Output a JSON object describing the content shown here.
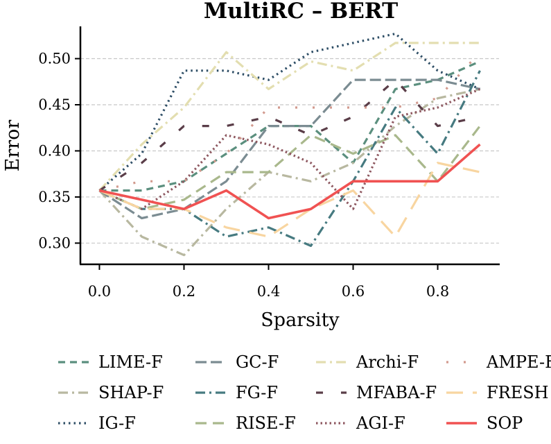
{
  "chart_data": {
    "type": "line",
    "title": "MultiRC – BERT",
    "xlabel": "Sparsity",
    "ylabel": "Error",
    "xlim": [
      -0.045,
      0.945
    ],
    "ylim": [
      0.277,
      0.535
    ],
    "xticks": [
      0.0,
      0.2,
      0.4,
      0.6,
      0.8
    ],
    "xtick_labels": [
      "0.0",
      "0.2",
      "0.4",
      "0.6",
      "0.8"
    ],
    "yticks": [
      0.3,
      0.35,
      0.4,
      0.45,
      0.5
    ],
    "ytick_labels": [
      "0.30",
      "0.35",
      "0.40",
      "0.45",
      "0.50"
    ],
    "grid": "y-dashed",
    "legend_position": "below",
    "x": [
      0.0,
      0.1,
      0.2,
      0.3,
      0.4,
      0.5,
      0.6,
      0.7,
      0.8,
      0.9
    ],
    "series": [
      {
        "name": "LIME-F",
        "color": "#5b8f7e",
        "dash": "10 7",
        "width": 3.2,
        "values": [
          0.357,
          0.357,
          0.367,
          0.397,
          0.427,
          0.427,
          0.387,
          0.467,
          0.477,
          0.497
        ]
      },
      {
        "name": "SHAP-F",
        "color": "#b8b8a0",
        "dash": "14 6 3 6",
        "width": 3.2,
        "values": [
          0.357,
          0.307,
          0.287,
          0.337,
          0.377,
          0.367,
          0.387,
          0.427,
          0.457,
          0.467
        ]
      },
      {
        "name": "IG-F",
        "color": "#2e4e66",
        "dash": "2.5 5",
        "width": 3.2,
        "values": [
          0.357,
          0.397,
          0.487,
          0.487,
          0.477,
          0.507,
          0.517,
          0.527,
          0.487,
          0.467
        ]
      },
      {
        "name": "GC-F",
        "color": "#7b8c92",
        "dash": "16 6",
        "width": 3.2,
        "values": [
          0.357,
          0.327,
          0.337,
          0.367,
          0.427,
          0.427,
          0.477,
          0.477,
          0.477,
          0.467
        ]
      },
      {
        "name": "FG-F",
        "color": "#467a80",
        "dash": "14 6 3 6",
        "width": 3.2,
        "values": [
          0.357,
          0.337,
          0.337,
          0.307,
          0.317,
          0.297,
          0.367,
          0.447,
          0.397,
          0.487
        ]
      },
      {
        "name": "RISE-F",
        "color": "#a9b88c",
        "dash": "16 9",
        "width": 3.2,
        "values": [
          0.357,
          0.337,
          0.347,
          0.377,
          0.377,
          0.417,
          0.397,
          0.417,
          0.367,
          0.427
        ]
      },
      {
        "name": "Archi-F",
        "color": "#e3deb0",
        "dash": "14 6 3 6",
        "width": 3.2,
        "values": [
          0.357,
          0.407,
          0.447,
          0.507,
          0.467,
          0.497,
          0.487,
          0.517,
          0.517,
          0.517
        ]
      },
      {
        "name": "MFABA-F",
        "color": "#5a3d48",
        "dash": "10 26",
        "width": 3.2,
        "values": [
          0.357,
          0.387,
          0.427,
          0.427,
          0.437,
          0.417,
          0.437,
          0.477,
          0.427,
          0.437
        ]
      },
      {
        "name": "AGI-F",
        "color": "#8e5860",
        "dash": "2.5 4",
        "width": 3.2,
        "values": [
          0.357,
          0.337,
          0.367,
          0.417,
          0.407,
          0.387,
          0.337,
          0.437,
          0.447,
          0.467
        ]
      },
      {
        "name": "AMPE-F",
        "color": "#d29a8e",
        "dash": "3 22",
        "width": 3.2,
        "values": [
          0.357,
          0.367,
          0.367,
          0.397,
          0.447,
          0.447,
          0.447,
          0.447,
          0.457,
          0.507
        ]
      },
      {
        "name": "FRESH",
        "color": "#f8d5a0",
        "dash": "24 14",
        "width": 3.2,
        "values": [
          0.357,
          0.337,
          0.337,
          0.317,
          0.307,
          0.337,
          0.357,
          0.307,
          0.387,
          0.377
        ]
      },
      {
        "name": "SOP",
        "color": "#f05252",
        "dash": "",
        "width": 3.6,
        "values": [
          0.357,
          0.347,
          0.337,
          0.357,
          0.327,
          0.337,
          0.367,
          0.367,
          0.367,
          0.407
        ]
      }
    ],
    "legend_order": [
      [
        "LIME-F",
        "GC-F",
        "Archi-F",
        "AMPE-F"
      ],
      [
        "SHAP-F",
        "FG-F",
        "MFABA-F",
        "FRESH"
      ],
      [
        "IG-F",
        "RISE-F",
        "AGI-F",
        "SOP"
      ]
    ]
  }
}
